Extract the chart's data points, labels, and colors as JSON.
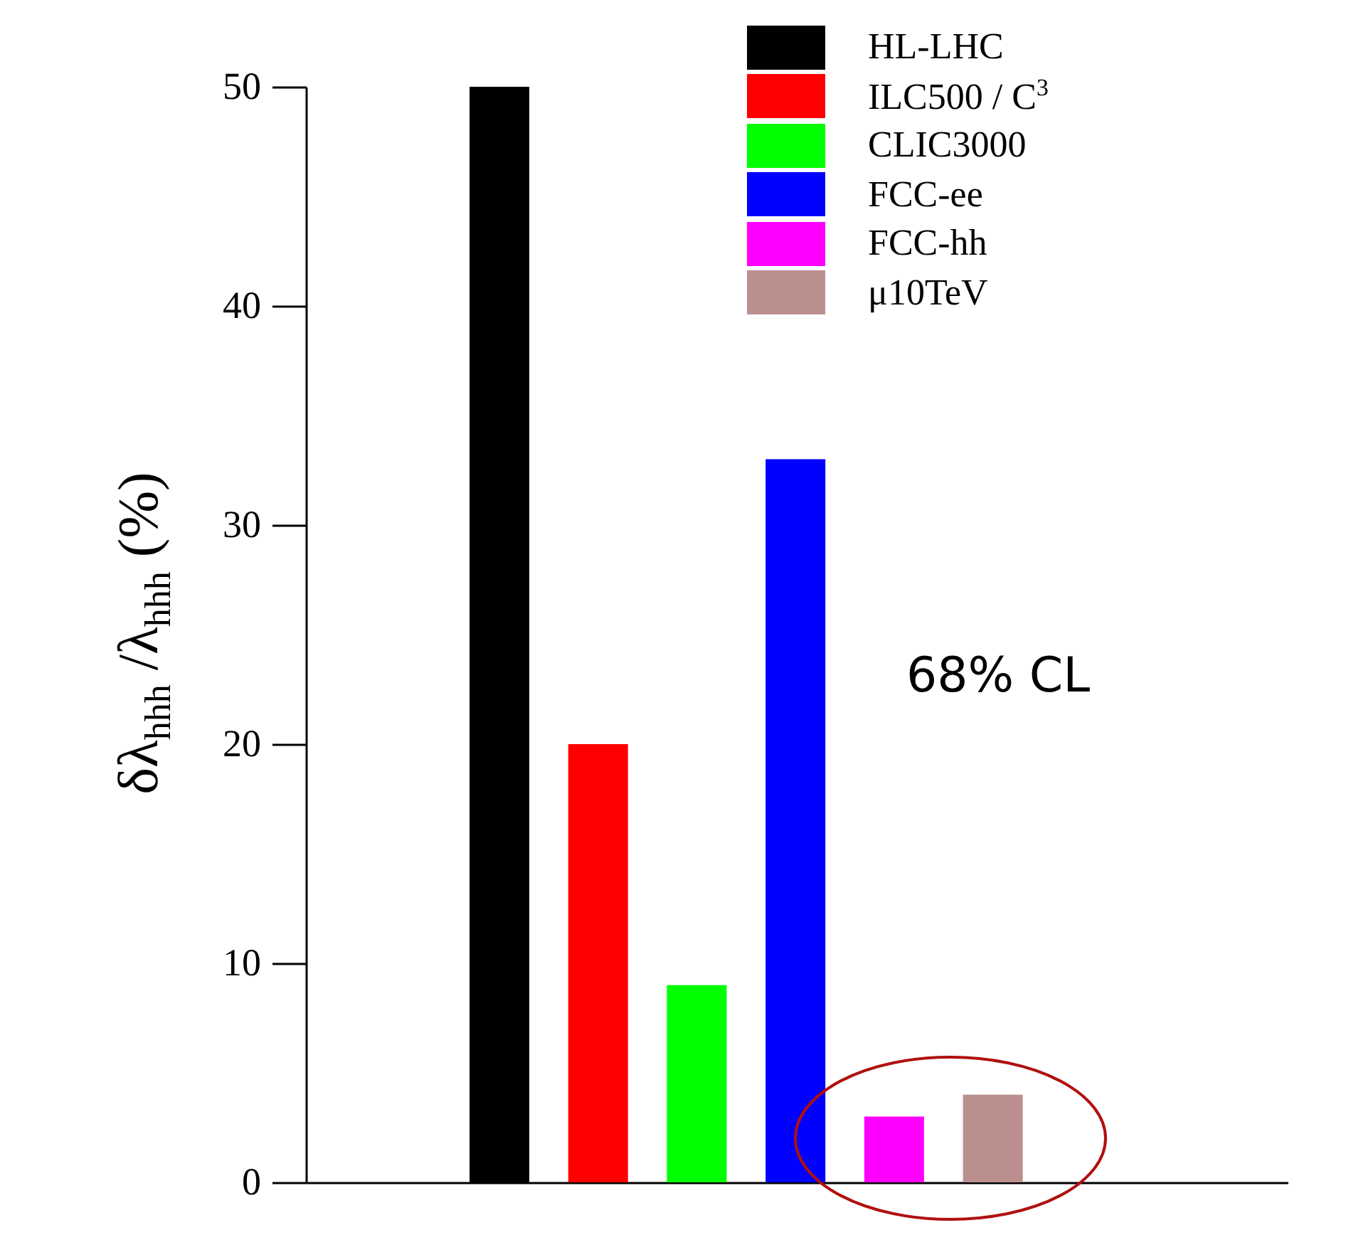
{
  "chart_data": {
    "type": "bar",
    "categories": [
      null
    ],
    "series": [
      {
        "name": "HL-LHC",
        "color": "#000000",
        "values": [
          50
        ]
      },
      {
        "name": "ILC500 / C$^{3}$",
        "color": "#ff0000",
        "values": [
          20
        ]
      },
      {
        "name": "CLIC3000",
        "color": "#00ff00",
        "values": [
          9
        ]
      },
      {
        "name": "FCC-ee",
        "color": "#0000ff",
        "values": [
          33
        ]
      },
      {
        "name": "FCC-hh",
        "color": "#ff00ff",
        "values": [
          3
        ]
      },
      {
        "name": "μ10TeV",
        "color": "#bc8f8f",
        "values": [
          4
        ]
      }
    ],
    "ylabel": "δλ$_{hhh}$ /λ$_{hhh}$ (%)",
    "ylim": [
      0,
      50
    ],
    "yticks": [
      0,
      10,
      20,
      30,
      40,
      50
    ],
    "annotations": [
      "68% CL"
    ],
    "legend": "top right"
  }
}
